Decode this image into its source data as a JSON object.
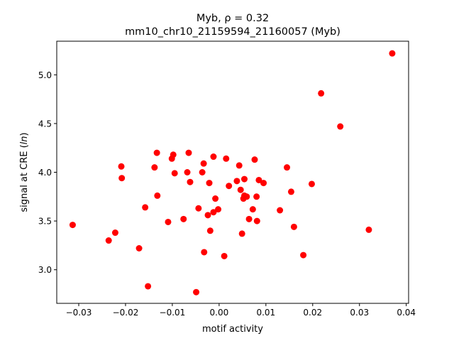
{
  "chart_data": {
    "type": "scatter",
    "title_line1": "Myb, ",
    "title_rho": "ρ = 0.32",
    "title_line2": "mm10_chr10_21159594_21160057 (Myb)",
    "xlabel": "motif activity",
    "ylabel_prefix": "signal at CRE (",
    "ylabel_italic": "ln",
    "ylabel_suffix": ")",
    "xlim": [
      -0.0347,
      0.0405
    ],
    "ylim": [
      2.655,
      5.345
    ],
    "xticks": [
      -0.03,
      -0.02,
      -0.01,
      0.0,
      0.01,
      0.02,
      0.03,
      0.04
    ],
    "xtick_labels": [
      "−0.03",
      "−0.02",
      "−0.01",
      "0.00",
      "0.01",
      "0.02",
      "0.03",
      "0.04"
    ],
    "yticks": [
      3.0,
      3.5,
      4.0,
      4.5,
      5.0
    ],
    "ytick_labels": [
      "3.0",
      "3.5",
      "4.0",
      "4.5",
      "5.0"
    ],
    "grid": false,
    "marker_color": "#ff0000",
    "points": [
      {
        "x": -0.0313,
        "y": 3.46
      },
      {
        "x": -0.0236,
        "y": 3.3
      },
      {
        "x": -0.0222,
        "y": 3.38
      },
      {
        "x": -0.0209,
        "y": 4.06
      },
      {
        "x": -0.0208,
        "y": 3.94
      },
      {
        "x": -0.0171,
        "y": 3.22
      },
      {
        "x": -0.0158,
        "y": 3.64
      },
      {
        "x": -0.0152,
        "y": 2.83
      },
      {
        "x": -0.0138,
        "y": 4.05
      },
      {
        "x": -0.0133,
        "y": 4.2
      },
      {
        "x": -0.0132,
        "y": 3.76
      },
      {
        "x": -0.0109,
        "y": 3.49
      },
      {
        "x": -0.0101,
        "y": 4.14
      },
      {
        "x": -0.0098,
        "y": 4.18
      },
      {
        "x": -0.0095,
        "y": 3.99
      },
      {
        "x": -0.0076,
        "y": 3.52
      },
      {
        "x": -0.0068,
        "y": 4.0
      },
      {
        "x": -0.0065,
        "y": 4.2
      },
      {
        "x": -0.0062,
        "y": 3.9
      },
      {
        "x": -0.0049,
        "y": 2.77
      },
      {
        "x": -0.0044,
        "y": 3.63
      },
      {
        "x": -0.0036,
        "y": 4.0
      },
      {
        "x": -0.0033,
        "y": 4.09
      },
      {
        "x": -0.0032,
        "y": 3.18
      },
      {
        "x": -0.0024,
        "y": 3.56
      },
      {
        "x": -0.0021,
        "y": 3.89
      },
      {
        "x": -0.0019,
        "y": 3.4
      },
      {
        "x": -0.0012,
        "y": 4.16
      },
      {
        "x": -0.0012,
        "y": 3.59
      },
      {
        "x": -0.0008,
        "y": 3.73
      },
      {
        "x": -0.0002,
        "y": 3.62
      },
      {
        "x": 0.0011,
        "y": 3.14
      },
      {
        "x": 0.0015,
        "y": 4.14
      },
      {
        "x": 0.0021,
        "y": 3.86
      },
      {
        "x": 0.0038,
        "y": 3.91
      },
      {
        "x": 0.0043,
        "y": 4.07
      },
      {
        "x": 0.0046,
        "y": 3.82
      },
      {
        "x": 0.0049,
        "y": 3.37
      },
      {
        "x": 0.0052,
        "y": 3.73
      },
      {
        "x": 0.0054,
        "y": 3.93
      },
      {
        "x": 0.0054,
        "y": 3.76
      },
      {
        "x": 0.0059,
        "y": 3.75
      },
      {
        "x": 0.0064,
        "y": 3.52
      },
      {
        "x": 0.0072,
        "y": 3.62
      },
      {
        "x": 0.0076,
        "y": 4.13
      },
      {
        "x": 0.008,
        "y": 3.75
      },
      {
        "x": 0.0081,
        "y": 3.5
      },
      {
        "x": 0.0085,
        "y": 3.92
      },
      {
        "x": 0.0095,
        "y": 3.89
      },
      {
        "x": 0.013,
        "y": 3.61
      },
      {
        "x": 0.0145,
        "y": 4.05
      },
      {
        "x": 0.0154,
        "y": 3.8
      },
      {
        "x": 0.016,
        "y": 3.44
      },
      {
        "x": 0.018,
        "y": 3.15
      },
      {
        "x": 0.0198,
        "y": 3.88
      },
      {
        "x": 0.0218,
        "y": 4.81
      },
      {
        "x": 0.0259,
        "y": 4.47
      },
      {
        "x": 0.032,
        "y": 3.41
      },
      {
        "x": 0.037,
        "y": 5.22
      }
    ]
  }
}
